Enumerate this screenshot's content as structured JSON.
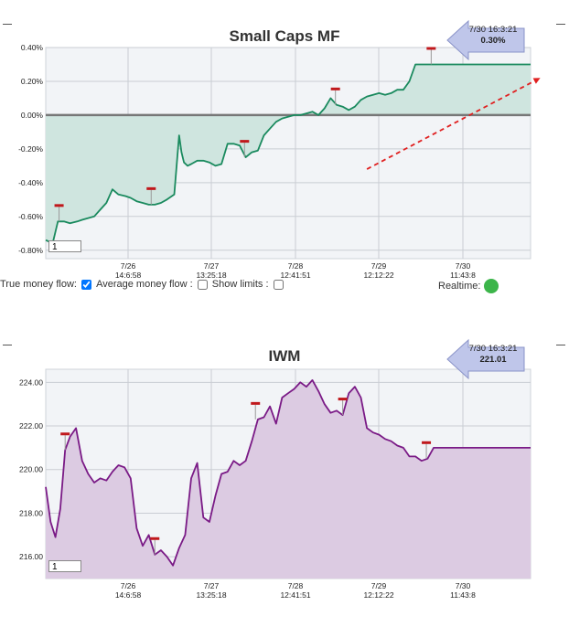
{
  "charts": [
    {
      "title": "Small Caps MF",
      "readout": {
        "time": "7/30 16:3:21",
        "value": "0.30%"
      },
      "period_value": "1"
    },
    {
      "title": "IWM",
      "readout": {
        "time": "7/30 16:3:21",
        "value": "221.01"
      },
      "period_value": "1"
    }
  ],
  "controls": {
    "true_money_flow_label": "True money flow:",
    "true_money_flow_checked": true,
    "average_money_flow_label": "Average money flow :",
    "average_money_flow_checked": false,
    "show_limits_label": "Show limits :",
    "show_limits_checked": false,
    "realtime_label": "Realtime:",
    "realtime_color": "#3cb54a"
  },
  "chart_data": [
    {
      "type": "area",
      "title": "Small Caps MF",
      "x_tick_labels": [
        [
          "7/26",
          "14:6:58"
        ],
        [
          "7/27",
          "13:25:18"
        ],
        [
          "7/28",
          "12:41:51"
        ],
        [
          "7/29",
          "12:12:22"
        ],
        [
          "7/30",
          "11:43:8"
        ]
      ],
      "y_ticks": [
        "0.40%",
        "0.20%",
        "0.00%",
        "-0.20%",
        "-0.40%",
        "-0.60%",
        "-0.80%"
      ],
      "ylim": [
        -0.85,
        0.4
      ],
      "line_color": "#1a8a5e",
      "fill_color": "#cfe5df",
      "x": [
        0,
        0.3,
        0.6,
        1,
        1.5,
        2,
        2.6,
        3,
        3.5,
        4,
        4.5,
        5,
        5.5,
        6,
        6.6,
        7,
        7.5,
        8,
        8.5,
        9,
        9.5,
        10,
        10.6,
        11,
        11.2,
        11.4,
        11.7,
        12,
        12.5,
        13,
        13.5,
        14,
        14.5,
        15,
        15.5,
        16,
        16.5,
        17,
        17.5,
        18,
        18.5,
        19,
        19.5,
        20,
        20.5,
        21,
        21.5,
        22,
        22.5,
        23,
        23.5,
        24,
        24.5,
        25,
        25.5,
        26,
        26.5,
        27,
        27.5,
        28,
        28.5,
        29,
        29.5,
        30,
        30.5,
        31,
        31.5,
        32,
        32.5,
        33,
        33.5,
        34,
        34.5,
        35,
        35.5,
        36,
        36.5,
        37,
        37.5,
        38,
        38.5,
        39,
        39.5,
        40
      ],
      "y": [
        -0.74,
        -0.75,
        -0.75,
        -0.63,
        -0.63,
        -0.64,
        -0.63,
        -0.62,
        -0.61,
        -0.6,
        -0.56,
        -0.52,
        -0.44,
        -0.47,
        -0.48,
        -0.49,
        -0.51,
        -0.52,
        -0.53,
        -0.53,
        -0.52,
        -0.5,
        -0.47,
        -0.12,
        -0.22,
        -0.28,
        -0.3,
        -0.29,
        -0.27,
        -0.27,
        -0.28,
        -0.3,
        -0.29,
        -0.17,
        -0.17,
        -0.18,
        -0.25,
        -0.22,
        -0.21,
        -0.12,
        -0.08,
        -0.04,
        -0.02,
        -0.01,
        0.0,
        0.0,
        0.01,
        0.02,
        0.0,
        0.04,
        0.1,
        0.06,
        0.05,
        0.03,
        0.05,
        0.09,
        0.11,
        0.12,
        0.13,
        0.12,
        0.13,
        0.15,
        0.15,
        0.2,
        0.3,
        0.3,
        0.3,
        0.3,
        0.3,
        0.3,
        0.3,
        0.3,
        0.3,
        0.3,
        0.3,
        0.3,
        0.3,
        0.3,
        0.3,
        0.3,
        0.3,
        0.3,
        0.3,
        0.3
      ],
      "markers_x": [
        1.1,
        8.7,
        16.4,
        23.9,
        31.8
      ],
      "trend_arrow": true
    },
    {
      "type": "area",
      "title": "IWM",
      "x_tick_labels": [
        [
          "7/26",
          "14:6:58"
        ],
        [
          "7/27",
          "13:25:18"
        ],
        [
          "7/28",
          "12:41:51"
        ],
        [
          "7/29",
          "12:12:22"
        ],
        [
          "7/30",
          "11:43:8"
        ]
      ],
      "y_ticks": [
        "224.00",
        "222.00",
        "220.00",
        "218.00",
        "216.00"
      ],
      "ylim": [
        215.0,
        224.6
      ],
      "line_color": "#7a1a86",
      "fill_color": "#dccbe2",
      "x": [
        0,
        0.4,
        0.8,
        1.2,
        1.6,
        2,
        2.5,
        3,
        3.5,
        4,
        4.5,
        5,
        5.5,
        6,
        6.5,
        7,
        7.5,
        8,
        8.5,
        9,
        9.5,
        10,
        10.5,
        11,
        11.5,
        12,
        12.5,
        13,
        13.5,
        14,
        14.5,
        15,
        15.5,
        16,
        16.5,
        17,
        17.5,
        18,
        18.5,
        19,
        19.5,
        20,
        20.5,
        21,
        21.5,
        22,
        22.5,
        23,
        23.5,
        24,
        24.5,
        25,
        25.5,
        26,
        26.5,
        27,
        27.5,
        28,
        28.5,
        29,
        29.5,
        30,
        30.5,
        31,
        31.5,
        32,
        32.5,
        33,
        33.5,
        34,
        34.5,
        35,
        35.5,
        36,
        36.5,
        37,
        37.5,
        38,
        38.5,
        39,
        39.5,
        40
      ],
      "y": [
        219.2,
        217.6,
        216.9,
        218.2,
        220.9,
        221.5,
        221.9,
        220.4,
        219.8,
        219.4,
        219.6,
        219.5,
        219.9,
        220.2,
        220.1,
        219.6,
        217.3,
        216.5,
        217.0,
        216.1,
        216.3,
        216.0,
        215.6,
        216.4,
        217.0,
        219.6,
        220.3,
        217.8,
        217.6,
        218.8,
        219.8,
        219.9,
        220.4,
        220.2,
        220.4,
        221.3,
        222.3,
        222.4,
        222.9,
        222.1,
        223.3,
        223.5,
        223.7,
        224.0,
        223.8,
        224.1,
        223.6,
        223.0,
        222.6,
        222.7,
        222.5,
        223.5,
        223.8,
        223.3,
        221.9,
        221.7,
        221.6,
        221.4,
        221.3,
        221.1,
        221.0,
        220.6,
        220.6,
        220.4,
        220.5,
        221.0,
        221.0,
        221.0,
        221.0,
        221.0,
        221.0,
        221.0,
        221.0,
        221.0,
        221.0,
        221.0,
        221.0,
        221.0,
        221.0,
        221.0,
        221.0,
        221.0
      ],
      "markers_x": [
        1.6,
        9.0,
        17.3,
        24.5,
        31.4
      ],
      "trend_arrow": false
    }
  ]
}
